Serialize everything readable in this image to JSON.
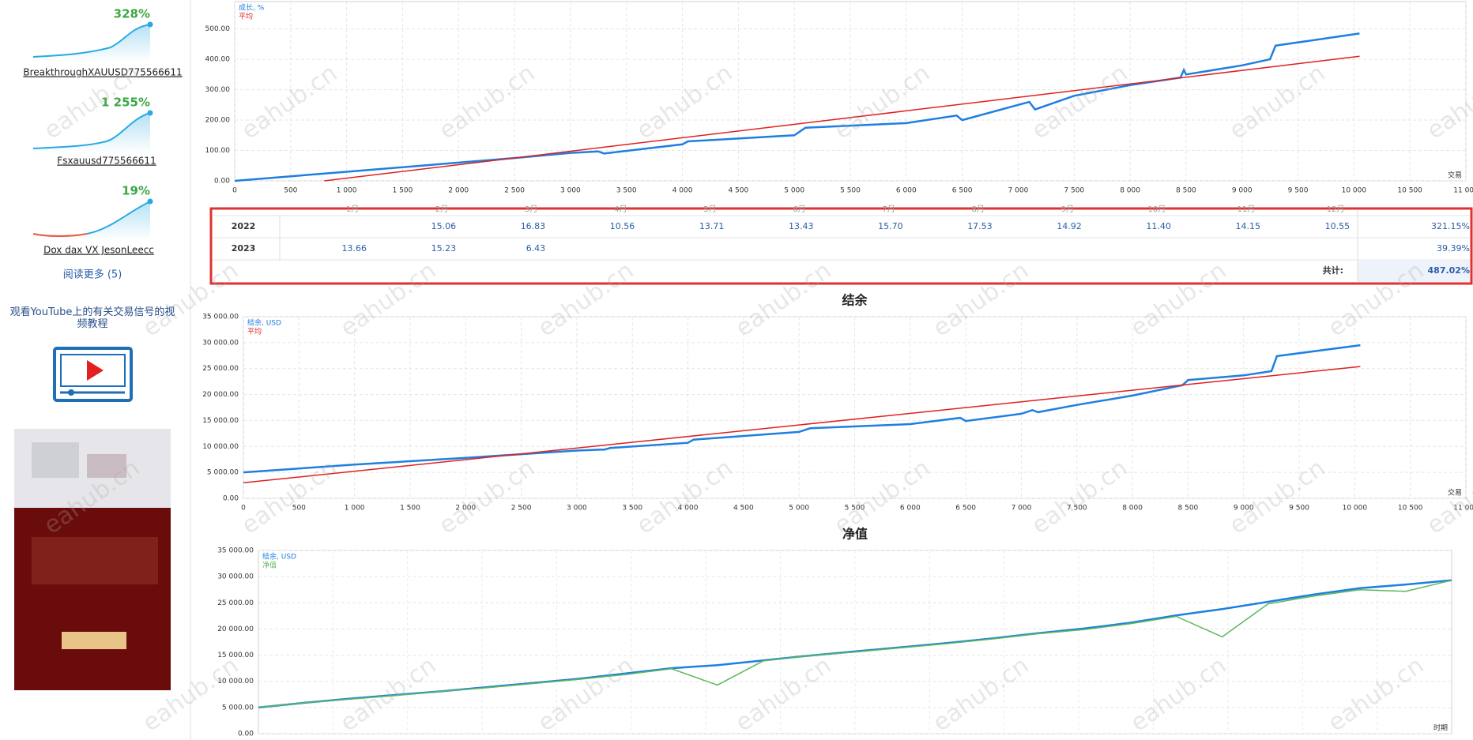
{
  "watermark": "eahub.cn",
  "sidebar": {
    "signals": [
      {
        "growth": "328%",
        "name": "BreakthroughXAUUSD775566611"
      },
      {
        "growth": "1 255%",
        "name": "Fsxauusd775566611"
      },
      {
        "growth": "19%",
        "name": "Dox dax VX JesonLeecc"
      }
    ],
    "read_more": "阅读更多 (5)",
    "video_text": "观看YouTube上的有关交易信号的视频教程"
  },
  "chart_data": [
    {
      "type": "line",
      "xlabel": "交易",
      "xlim": [
        0,
        11000
      ],
      "xticks": [
        0,
        500,
        {
          "value": 1000,
          "label": "1 000"
        },
        {
          "value": 1500,
          "label": "1 500"
        },
        {
          "value": 2000,
          "label": "2 000"
        },
        {
          "value": 2500,
          "label": "2 500"
        },
        {
          "value": 3000,
          "label": "3 000"
        },
        {
          "value": 3500,
          "label": "3 500"
        },
        {
          "value": 4000,
          "label": "4 000"
        },
        {
          "value": 4500,
          "label": "4 500"
        },
        {
          "value": 5000,
          "label": "5 000"
        },
        {
          "value": 5500,
          "label": "5 500"
        },
        {
          "value": 6000,
          "label": "6 000"
        },
        {
          "value": 6500,
          "label": "6 500"
        },
        {
          "value": 7000,
          "label": "7 000"
        },
        {
          "value": 7500,
          "label": "7 500"
        },
        {
          "value": 8000,
          "label": "8 000"
        },
        {
          "value": 8500,
          "label": "8 500"
        },
        {
          "value": 9000,
          "label": "9 000"
        },
        {
          "value": 9500,
          "label": "9 500"
        },
        {
          "value": 10000,
          "label": "10 000"
        },
        {
          "value": 10500,
          "label": "10 500"
        },
        {
          "value": 11000,
          "label": "11 000"
        }
      ],
      "ylim": [
        0,
        590
      ],
      "yticks": [
        {
          "value": 0,
          "label": "0.00"
        },
        {
          "value": 100,
          "label": "100.00"
        },
        {
          "value": 200,
          "label": "200.00"
        },
        {
          "value": 300,
          "label": "300.00"
        },
        {
          "value": 400,
          "label": "400.00"
        },
        {
          "value": 500,
          "label": "500.00"
        }
      ],
      "grid": true,
      "series": [
        {
          "name": "成长, %",
          "color": "#1e7fe0",
          "x": [
            0,
            1000,
            2000,
            2500,
            3000,
            3250,
            3300,
            4000,
            4050,
            5000,
            5100,
            6000,
            6450,
            6500,
            7000,
            7100,
            7150,
            7500,
            8000,
            8450,
            8480,
            8500,
            9000,
            9250,
            9300,
            10050
          ],
          "values": [
            0,
            30,
            60,
            75,
            92,
            97,
            90,
            120,
            130,
            150,
            175,
            190,
            215,
            200,
            250,
            260,
            235,
            280,
            315,
            340,
            365,
            350,
            380,
            400,
            445,
            485
          ]
        },
        {
          "name": "平均",
          "color": "#e02020",
          "x": [
            800,
            10050
          ],
          "values": [
            0,
            410
          ]
        }
      ]
    },
    {
      "type": "line",
      "title": "结余",
      "xlabel": "交易",
      "xlim": [
        0,
        11000
      ],
      "xticks": [
        0,
        500,
        {
          "value": 1000,
          "label": "1 000"
        },
        {
          "value": 1500,
          "label": "1 500"
        },
        {
          "value": 2000,
          "label": "2 000"
        },
        {
          "value": 2500,
          "label": "2 500"
        },
        {
          "value": 3000,
          "label": "3 000"
        },
        {
          "value": 3500,
          "label": "3 500"
        },
        {
          "value": 4000,
          "label": "4 000"
        },
        {
          "value": 4500,
          "label": "4 500"
        },
        {
          "value": 5000,
          "label": "5 000"
        },
        {
          "value": 5500,
          "label": "5 500"
        },
        {
          "value": 6000,
          "label": "6 000"
        },
        {
          "value": 6500,
          "label": "6 500"
        },
        {
          "value": 7000,
          "label": "7 000"
        },
        {
          "value": 7500,
          "label": "7 500"
        },
        {
          "value": 8000,
          "label": "8 000"
        },
        {
          "value": 8500,
          "label": "8 500"
        },
        {
          "value": 9000,
          "label": "9 000"
        },
        {
          "value": 9500,
          "label": "9 500"
        },
        {
          "value": 10000,
          "label": "10 000"
        },
        {
          "value": 10500,
          "label": "10 500"
        },
        {
          "value": 11000,
          "label": "11 000"
        }
      ],
      "ylim": [
        0,
        35000
      ],
      "yticks": [
        {
          "value": 0,
          "label": "0.00"
        },
        {
          "value": 5000,
          "label": "5 000.00"
        },
        {
          "value": 10000,
          "label": "10 000.00"
        },
        {
          "value": 15000,
          "label": "15 000.00"
        },
        {
          "value": 20000,
          "label": "20 000.00"
        },
        {
          "value": 25000,
          "label": "25 000.00"
        },
        {
          "value": 30000,
          "label": "30 000.00"
        },
        {
          "value": 35000,
          "label": "35 000.00"
        }
      ],
      "grid": true,
      "series": [
        {
          "name": "结余, USD",
          "color": "#1e7fe0",
          "x": [
            0,
            1000,
            2000,
            2500,
            3000,
            3250,
            3300,
            4000,
            4050,
            5000,
            5100,
            6000,
            6450,
            6500,
            7000,
            7100,
            7150,
            7500,
            8000,
            8450,
            8500,
            9000,
            9250,
            9300,
            10050
          ],
          "values": [
            5000,
            6500,
            7800,
            8500,
            9200,
            9400,
            9700,
            10700,
            11300,
            12800,
            13500,
            14300,
            15500,
            14900,
            16300,
            17000,
            16600,
            18000,
            19800,
            21800,
            22800,
            23700,
            24500,
            27400,
            29500
          ]
        },
        {
          "name": "平均",
          "color": "#e02020",
          "x": [
            0,
            10050
          ],
          "values": [
            3000,
            25400
          ]
        }
      ]
    },
    {
      "type": "line",
      "title": "净值",
      "xlabel": "时期",
      "ylim": [
        0,
        35000
      ],
      "yticks": [
        {
          "value": 0,
          "label": "0.00"
        },
        {
          "value": 5000,
          "label": "5 000.00"
        },
        {
          "value": 10000,
          "label": "10 000.00"
        },
        {
          "value": 15000,
          "label": "15 000.00"
        },
        {
          "value": 20000,
          "label": "20 000.00"
        },
        {
          "value": 25000,
          "label": "25 000.00"
        },
        {
          "value": 30000,
          "label": "30 000.00"
        },
        {
          "value": 35000,
          "label": "35 000.00"
        }
      ],
      "grid": true,
      "series": [
        {
          "name": "结余, USD",
          "color": "#1e7fe0",
          "values": [
            5000,
            5900,
            6700,
            7400,
            8100,
            8900,
            9700,
            10500,
            11500,
            12500,
            13100,
            14000,
            14900,
            15700,
            16500,
            17300,
            18200,
            19200,
            20100,
            21200,
            22600,
            23800,
            25200,
            26600,
            27800,
            28500,
            29300
          ]
        },
        {
          "name": "净值",
          "color": "#5cb85c",
          "values": [
            5000,
            5900,
            6600,
            7300,
            8100,
            8800,
            9600,
            10400,
            11300,
            12400,
            9300,
            13900,
            14900,
            15600,
            16400,
            17200,
            18100,
            19100,
            19900,
            21000,
            22400,
            18500,
            24800,
            26300,
            27500,
            27200,
            29300
          ]
        }
      ]
    }
  ],
  "monthly_table": {
    "columns": [
      "1月",
      "2月",
      "3月",
      "4月",
      "5月",
      "6月",
      "7月",
      "8月",
      "9月",
      "10月",
      "11月",
      "12月"
    ],
    "rows": [
      {
        "year": "2022",
        "values": [
          null,
          "15.06",
          "16.83",
          "10.56",
          "13.71",
          "13.43",
          "15.70",
          "17.53",
          "14.92",
          "11.40",
          "14.15",
          "10.55"
        ],
        "total": "321.15%"
      },
      {
        "year": "2023",
        "values": [
          "13.66",
          "15.23",
          "6.43",
          null,
          null,
          null,
          null,
          null,
          null,
          null,
          null,
          null
        ],
        "total": "39.39%"
      }
    ],
    "total_label": "共计:",
    "total": "487.02%"
  }
}
